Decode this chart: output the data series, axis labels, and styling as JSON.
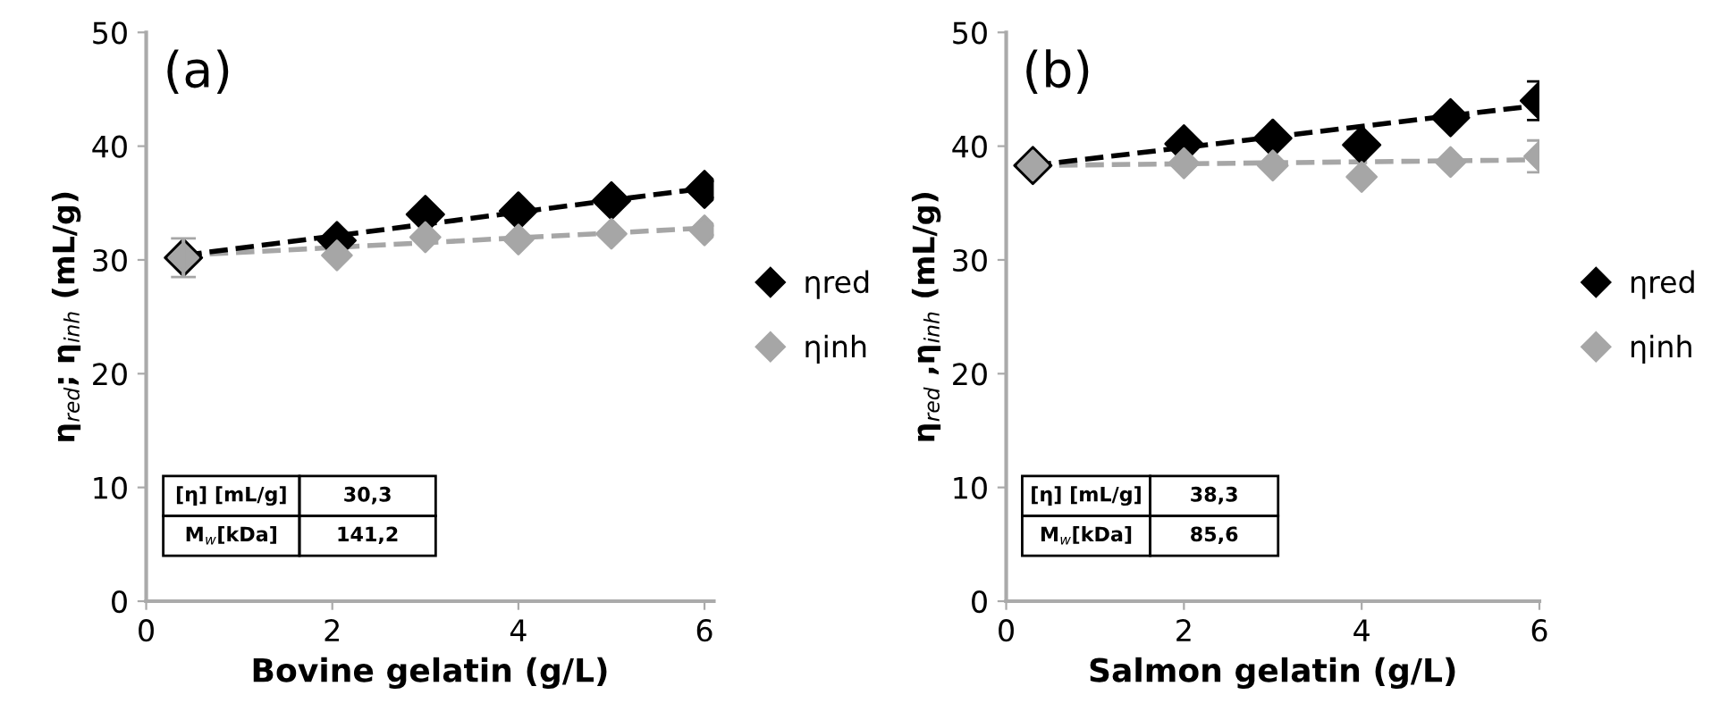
{
  "chart_data": [
    {
      "type": "scatter",
      "title": "(a)",
      "xlabel": "Bovine gelatin (g/L)",
      "ylabel": "η$_{red}$; η$_{inh}$ (mL/g)",
      "xlim": [
        0,
        6.1
      ],
      "ylim": [
        0,
        50
      ],
      "xticks": [
        0,
        2,
        4,
        6
      ],
      "yticks": [
        0,
        10,
        20,
        30,
        40,
        50
      ],
      "grid": false,
      "legend": "right",
      "annotations": [
        "[η] [mL/g]",
        "30,3",
        "M$_{w}$[kDa]",
        "141,2"
      ],
      "series": [
        {
          "type": "line",
          "color": "#a6a6a6",
          "line_style": "dashed",
          "marker": "none",
          "x": [
            0.4,
            6
          ],
          "values": [
            30.4,
            32.8
          ]
        },
        {
          "type": "line",
          "color": "#000000",
          "line_style": "dashed",
          "marker": "none",
          "x": [
            0.4,
            6
          ],
          "values": [
            30.4,
            36.3
          ]
        },
        {
          "name": "ηred",
          "color": "#000000",
          "marker": "diamond",
          "x": [
            0.4,
            2.05,
            3,
            4,
            5,
            6
          ],
          "values": [
            30.2,
            31.7,
            34.0,
            34.3,
            35.2,
            36.2
          ]
        },
        {
          "name": "ηinh",
          "color": "#a6a6a6",
          "marker": "diamond",
          "x": [
            0.4,
            2.05,
            3,
            4,
            5,
            6
          ],
          "values": [
            30.2,
            30.4,
            32.0,
            31.8,
            32.3,
            32.6
          ],
          "errors": [
            1.7,
            null,
            null,
            null,
            null,
            null
          ]
        }
      ]
    },
    {
      "type": "scatter",
      "title": "(b)",
      "xlabel": "Salmon gelatin (g/L)",
      "ylabel": "η$_{red}$ ,η$_{inh}$ (mL/g)",
      "xlim": [
        0,
        6
      ],
      "ylim": [
        0,
        50
      ],
      "xticks": [
        0,
        2,
        4,
        6
      ],
      "yticks": [
        0,
        10,
        20,
        30,
        40,
        50
      ],
      "grid": false,
      "legend": "right",
      "annotations": [
        "[η] [mL/g]",
        "38,3",
        "M$_{w}$[kDa]",
        "85,6"
      ],
      "series": [
        {
          "type": "line",
          "color": "#a6a6a6",
          "line_style": "dashed",
          "marker": "none",
          "x": [
            0.3,
            6
          ],
          "values": [
            38.3,
            38.8
          ]
        },
        {
          "type": "line",
          "color": "#000000",
          "line_style": "dashed",
          "marker": "none",
          "x": [
            0.3,
            6
          ],
          "values": [
            38.3,
            43.6
          ]
        },
        {
          "name": "ηred",
          "color": "#000000",
          "marker": "diamond",
          "x": [
            0.3,
            2,
            3,
            4,
            5,
            6
          ],
          "values": [
            38.3,
            40.2,
            40.7,
            40.1,
            42.5,
            44.0
          ],
          "errors": [
            null,
            null,
            null,
            null,
            null,
            1.7
          ]
        },
        {
          "name": "ηinh",
          "color": "#a6a6a6",
          "marker": "diamond",
          "x": [
            0.3,
            2,
            3,
            4,
            5,
            6
          ],
          "values": [
            38.3,
            38.5,
            38.3,
            37.3,
            38.6,
            39.1
          ],
          "errors": [
            null,
            null,
            null,
            null,
            null,
            1.4
          ]
        }
      ]
    }
  ]
}
